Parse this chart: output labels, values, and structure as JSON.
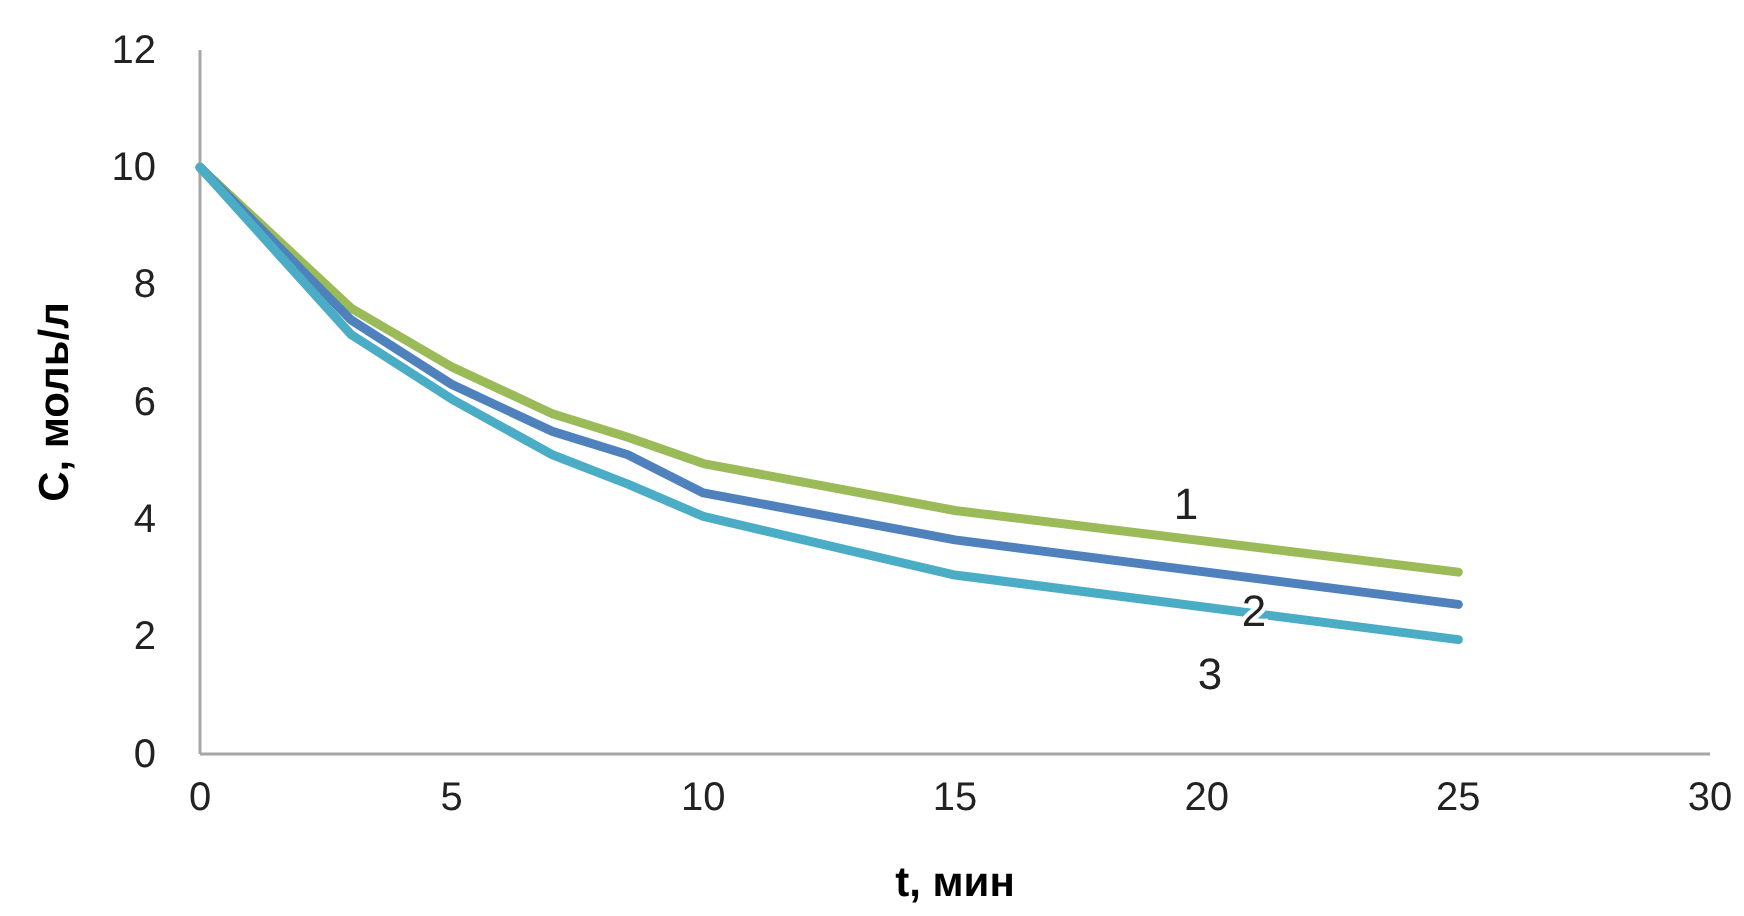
{
  "chart_data": {
    "type": "line",
    "xlabel": "t, мин",
    "ylabel": "C, моль/л",
    "x": [
      0,
      3,
      5,
      7,
      8.5,
      10,
      15,
      25
    ],
    "series": [
      {
        "name": "1",
        "color": "#9bbb59",
        "values": [
          10,
          7.6,
          6.6,
          5.8,
          5.4,
          4.95,
          4.15,
          3.1
        ]
      },
      {
        "name": "2",
        "color": "#4f81bd",
        "values": [
          10,
          7.4,
          6.3,
          5.5,
          5.1,
          4.45,
          3.65,
          2.55
        ]
      },
      {
        "name": "3",
        "color": "#4bacc6",
        "values": [
          10,
          7.15,
          6.05,
          5.1,
          4.6,
          4.05,
          3.05,
          1.95
        ]
      }
    ],
    "xlim": [
      0,
      30
    ],
    "xticks": [
      0,
      5,
      10,
      15,
      20,
      25,
      30
    ],
    "ylim": [
      0,
      12
    ],
    "yticks": [
      0,
      2,
      4,
      6,
      8,
      10,
      12
    ],
    "grid": false,
    "marker": "none",
    "line_style": "solid"
  }
}
